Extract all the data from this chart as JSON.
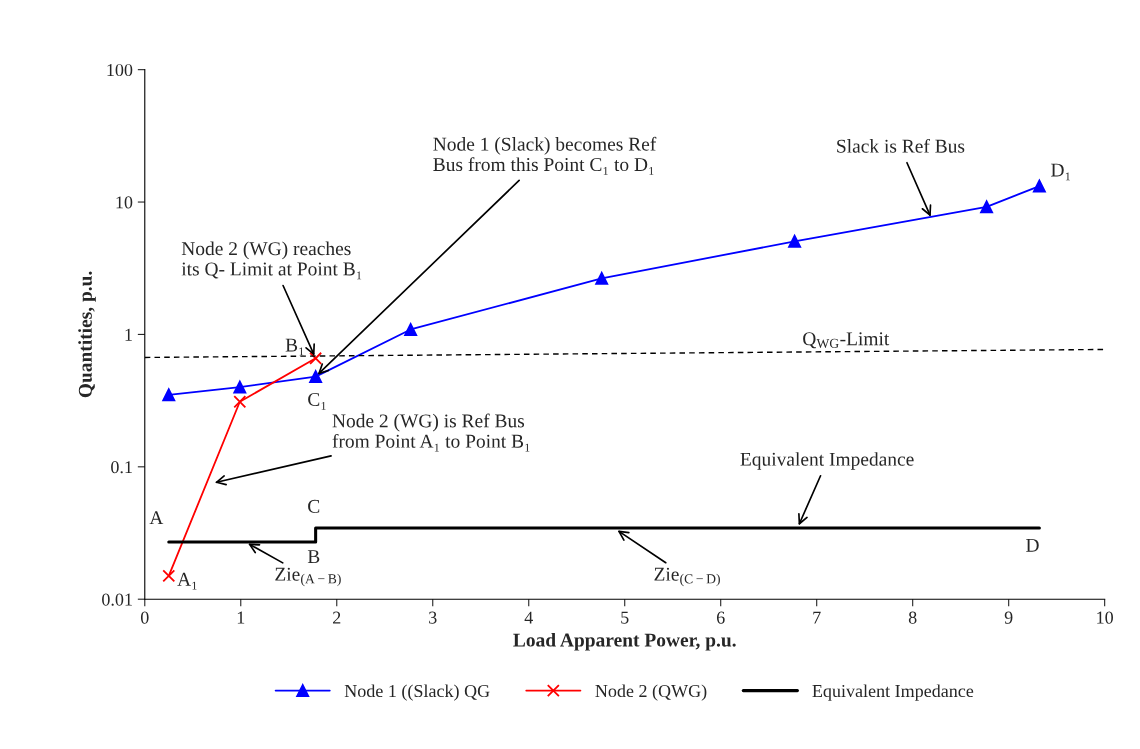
{
  "chart_data": {
    "type": "line",
    "xlabel": "Load Apparent Power, p.u.",
    "ylabel": "Quantities, p.u.",
    "log": "y",
    "xlim": [
      0,
      10
    ],
    "xticks": [
      0,
      1,
      2,
      3,
      4,
      5,
      6,
      7,
      8,
      9,
      10
    ],
    "ylim": [
      0.01,
      100
    ],
    "yticks": [
      0.01,
      0.1,
      1,
      10,
      100
    ],
    "grid": false,
    "legend": "bottom",
    "series": [
      {
        "name": "Node 1 ((Slack) QG",
        "color": "#0000ff",
        "marker": "triangle",
        "line_style": "solid",
        "x": [
          0.25,
          0.99,
          1.78,
          2.77,
          4.76,
          6.77,
          8.77,
          9.32
        ],
        "values": [
          0.35,
          0.4,
          0.48,
          1.09,
          2.65,
          5.05,
          9.2,
          13.2
        ]
      },
      {
        "name": "Node 2 (QWG)",
        "color": "#ff0000",
        "marker": "cross",
        "line_style": "solid",
        "x": [
          0.25,
          0.99,
          1.78
        ],
        "values": [
          0.015,
          0.31,
          0.66
        ]
      },
      {
        "name": "Equivalent Impedance",
        "color": "#000000",
        "marker": "none",
        "line_style": "solid",
        "x": [
          0.25,
          1.78,
          1.78,
          9.32
        ],
        "values": [
          0.027,
          0.027,
          0.0345,
          0.0345
        ]
      },
      {
        "color": "#000000",
        "marker": "none",
        "line_style": "dashed",
        "x": [
          0,
          10
        ],
        "values": [
          0.67,
          0.77
        ]
      }
    ],
    "annotations": [
      {
        "text": "Node 2 (WG) reaches\nits Q- Limit at Point B₁",
        "x": 1.78,
        "y": 0.66
      },
      {
        "text": "Node 1 (Slack) becomes Ref\nBus from this Point C₁ to D₁",
        "x": 1.78,
        "y": 0.48
      },
      {
        "text": "Slack is Ref Bus",
        "x": 8.2,
        "y": 7.4
      },
      {
        "text": "Node 2 (WG) is Ref Bus\nfrom Point A₁ to Point B₁",
        "x": 0.7,
        "y": 0.075
      },
      {
        "text": "Equivalent Impedance",
        "x": 6.8,
        "y": 0.0345
      },
      {
        "text": "Zie$_{(A−B)}$",
        "x": 1.05,
        "y": 0.027
      },
      {
        "text": "Zie$_{(C−D)}$",
        "x": 4.9,
        "y": 0.034
      },
      {
        "text": "Q$_{WG}$-Limit",
        "x": 7.4,
        "y": 0.72
      },
      {
        "text": "A",
        "x": 0.25,
        "y": 0.027
      },
      {
        "text": "A₁",
        "x": 0.25,
        "y": 0.015
      },
      {
        "text": "B",
        "x": 1.78,
        "y": 0.027
      },
      {
        "text": "B₁",
        "x": 1.78,
        "y": 0.66
      },
      {
        "text": "C",
        "x": 1.78,
        "y": 0.0345
      },
      {
        "text": "C₁",
        "x": 1.78,
        "y": 0.48
      },
      {
        "text": "D",
        "x": 9.32,
        "y": 0.0345
      },
      {
        "text": "D₁",
        "x": 9.32,
        "y": 13.2
      }
    ]
  }
}
